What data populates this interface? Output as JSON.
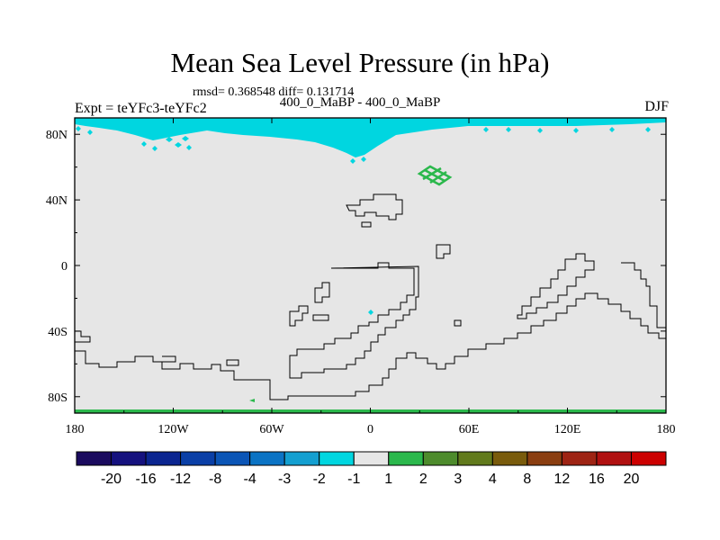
{
  "chart_data": {
    "type": "heatmap",
    "title": "Mean Sea Level Pressure (in hPa)",
    "stats": "rmsd= 0.368548 diff= 0.131714",
    "subtitle": "400_0_MaBP - 400_0_MaBP",
    "left_label": "Expt = teYFc3-teYFc2",
    "right_label": "DJF",
    "x_ticks": [
      "180",
      "120W",
      "60W",
      "0",
      "60E",
      "120E",
      "180"
    ],
    "x_tick_values": [
      -180,
      -120,
      -60,
      0,
      60,
      120,
      180
    ],
    "y_ticks": [
      "80N",
      "40N",
      "0",
      "40S",
      "80S"
    ],
    "y_tick_values": [
      80,
      40,
      0,
      -40,
      -80
    ],
    "xlim": [
      -180,
      180
    ],
    "ylim": [
      -90,
      90
    ],
    "background_value_range": [
      -1,
      1
    ],
    "features": [
      {
        "name": "arctic-negative-band",
        "value_range": [
          -2,
          -1
        ],
        "lon": [
          -180,
          180
        ],
        "lat": [
          72,
          90
        ]
      },
      {
        "name": "siberia-positive-patch",
        "value_range": [
          1,
          2
        ],
        "lon": [
          30,
          50
        ],
        "lat": [
          50,
          60
        ]
      },
      {
        "name": "southern-edge-positive",
        "value_range": [
          1,
          2
        ],
        "lon": [
          -180,
          180
        ],
        "lat": [
          -90,
          -88
        ]
      }
    ],
    "colorbar": {
      "labels": [
        "-20",
        "-16",
        "-12",
        "-8",
        "-4",
        "-3",
        "-2",
        "-1",
        "1",
        "2",
        "3",
        "4",
        "8",
        "12",
        "16",
        "20"
      ],
      "colors": [
        "#1a0a5e",
        "#15117e",
        "#0b2590",
        "#0a3fa6",
        "#0b55b6",
        "#0b73c4",
        "#139fd0",
        "#00d6e0",
        "#e6e6e6",
        "#2bb84c",
        "#4d8b2c",
        "#617a1c",
        "#795b0c",
        "#8a3e10",
        "#9e2414",
        "#b01010",
        "#cc0000"
      ]
    }
  }
}
